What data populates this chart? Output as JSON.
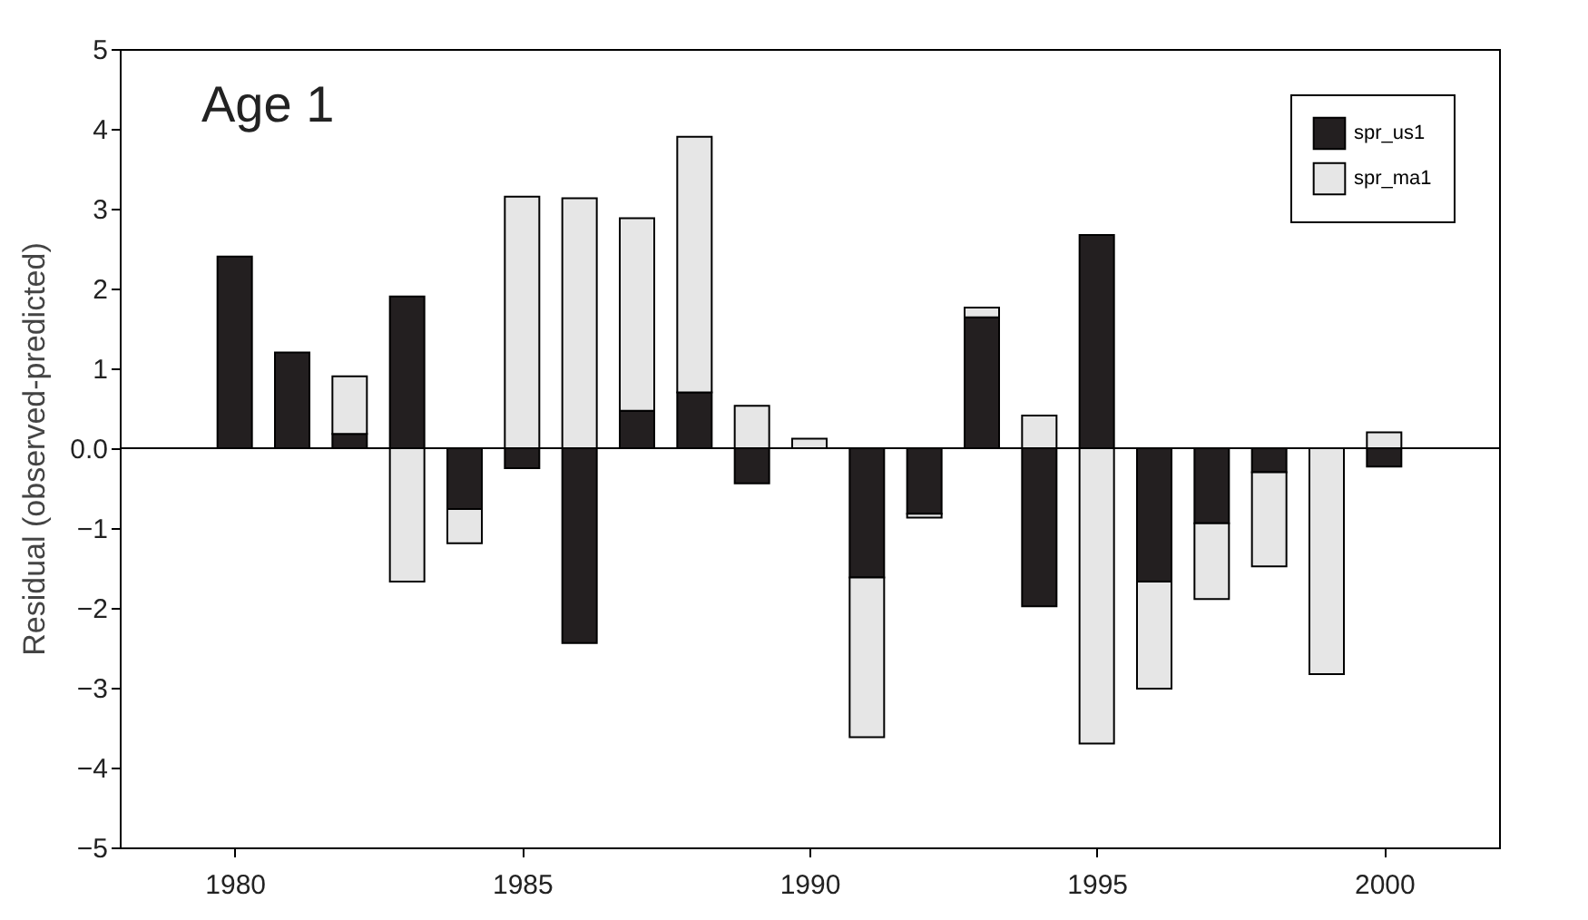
{
  "chart_data": {
    "type": "bar",
    "stacked": true,
    "ylabel": "Residual (observed-predicted)",
    "annotations": [
      "Age 1"
    ],
    "x": [
      1980,
      1981,
      1982,
      1983,
      1984,
      1985,
      1986,
      1987,
      1988,
      1989,
      1990,
      1991,
      1992,
      1993,
      1994,
      1995,
      1996,
      1997,
      1998,
      1999,
      2000
    ],
    "series": [
      {
        "name": "spr_us1",
        "color": "#231f20",
        "values": [
          2.4,
          1.2,
          0.18,
          1.9,
          -0.76,
          -0.25,
          -2.44,
          0.47,
          0.7,
          -0.44,
          null,
          -1.62,
          -0.82,
          1.64,
          -1.98,
          2.67,
          -1.67,
          -0.94,
          -0.3,
          null,
          -0.23
        ]
      },
      {
        "name": "spr_ma1",
        "color": "#e6e6e6",
        "values": [
          null,
          null,
          0.72,
          -1.67,
          -0.43,
          3.15,
          3.13,
          2.41,
          3.2,
          0.53,
          0.12,
          -2.0,
          -0.05,
          0.12,
          0.41,
          -3.7,
          -1.34,
          -0.95,
          -1.18,
          -2.83,
          0.2
        ]
      }
    ],
    "xlim": [
      1978,
      2002
    ],
    "xticks": [
      1980,
      1985,
      1990,
      1995,
      2000
    ],
    "ylim": [
      -5,
      5
    ],
    "yticks": [
      -5,
      -4,
      -3,
      -2,
      -1,
      {
        "value": 0,
        "label": "0.0"
      },
      1,
      2,
      3,
      4,
      5
    ],
    "ref_lines": [
      {
        "axis": "y",
        "value": 0,
        "label": null
      }
    ],
    "grid": false,
    "legend": "top right"
  }
}
